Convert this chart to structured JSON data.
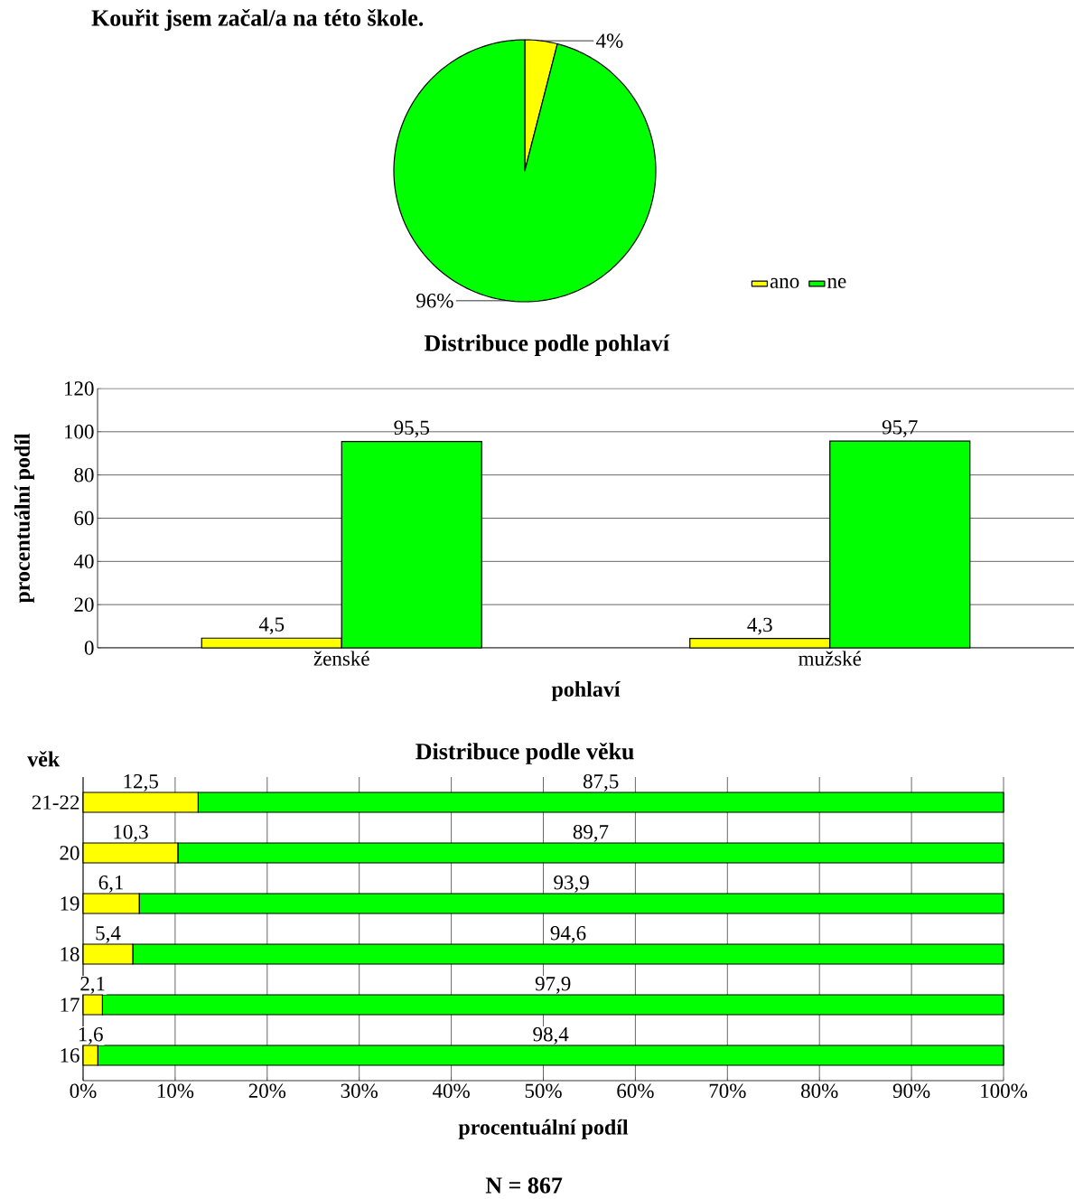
{
  "chart_data": [
    {
      "type": "pie",
      "title": "Kouřit jsem začal/a na této škole.",
      "categories": [
        "ano",
        "ne"
      ],
      "values": [
        4,
        96
      ],
      "colors": [
        "#ffff00",
        "#00ff00"
      ],
      "value_labels": [
        "4%",
        "96%"
      ],
      "legend": "bottom right"
    },
    {
      "type": "bar",
      "title": "Distribuce podle pohlaví",
      "xlabel": "pohlaví",
      "ylabel": "procentuální podíl",
      "categories": [
        "ženské",
        "mužské"
      ],
      "ylim": [
        0,
        120
      ],
      "yticks": [
        0,
        20,
        40,
        60,
        80,
        100,
        120
      ],
      "grid": "y",
      "series": [
        {
          "color": "#ffff00",
          "values": [
            4.5,
            4.3
          ],
          "value_labels": [
            "4,5",
            "4,3"
          ]
        },
        {
          "color": "#00ff00",
          "values": [
            95.5,
            95.7
          ],
          "value_labels": [
            "95,5",
            "95,7"
          ]
        }
      ]
    },
    {
      "type": "bar",
      "orientation": "horizontal",
      "stacked": true,
      "title": "Distribuce podle věku",
      "xlabel": "procentuální podíl",
      "ylabel": "věk",
      "categories": [
        "21-22",
        "20",
        "19",
        "18",
        "17",
        "16"
      ],
      "xlim": [
        0,
        100
      ],
      "xticks": [
        {
          "value": 0,
          "label": "0%"
        },
        {
          "value": 10,
          "label": "10%"
        },
        {
          "value": 20,
          "label": "20%"
        },
        {
          "value": 30,
          "label": "30%"
        },
        {
          "value": 40,
          "label": "40%"
        },
        {
          "value": 50,
          "label": "50%"
        },
        {
          "value": 60,
          "label": "60%"
        },
        {
          "value": 70,
          "label": "70%"
        },
        {
          "value": 80,
          "label": "80%"
        },
        {
          "value": 90,
          "label": "90%"
        },
        {
          "value": 100,
          "label": "100%"
        }
      ],
      "grid": "x",
      "annotations": [
        "N = 867"
      ],
      "series": [
        {
          "color": "#ffff00",
          "values": [
            12.5,
            10.3,
            6.1,
            5.4,
            2.1,
            1.6
          ],
          "value_labels": [
            "12,5",
            "10,3",
            "6,1",
            "5,4",
            "2,1",
            "1,6"
          ]
        },
        {
          "color": "#00ff00",
          "values": [
            87.5,
            89.7,
            93.9,
            94.6,
            97.9,
            98.4
          ],
          "value_labels": [
            "87,5",
            "89,7",
            "93,9",
            "94,6",
            "97,9",
            "98,4"
          ]
        }
      ]
    }
  ]
}
